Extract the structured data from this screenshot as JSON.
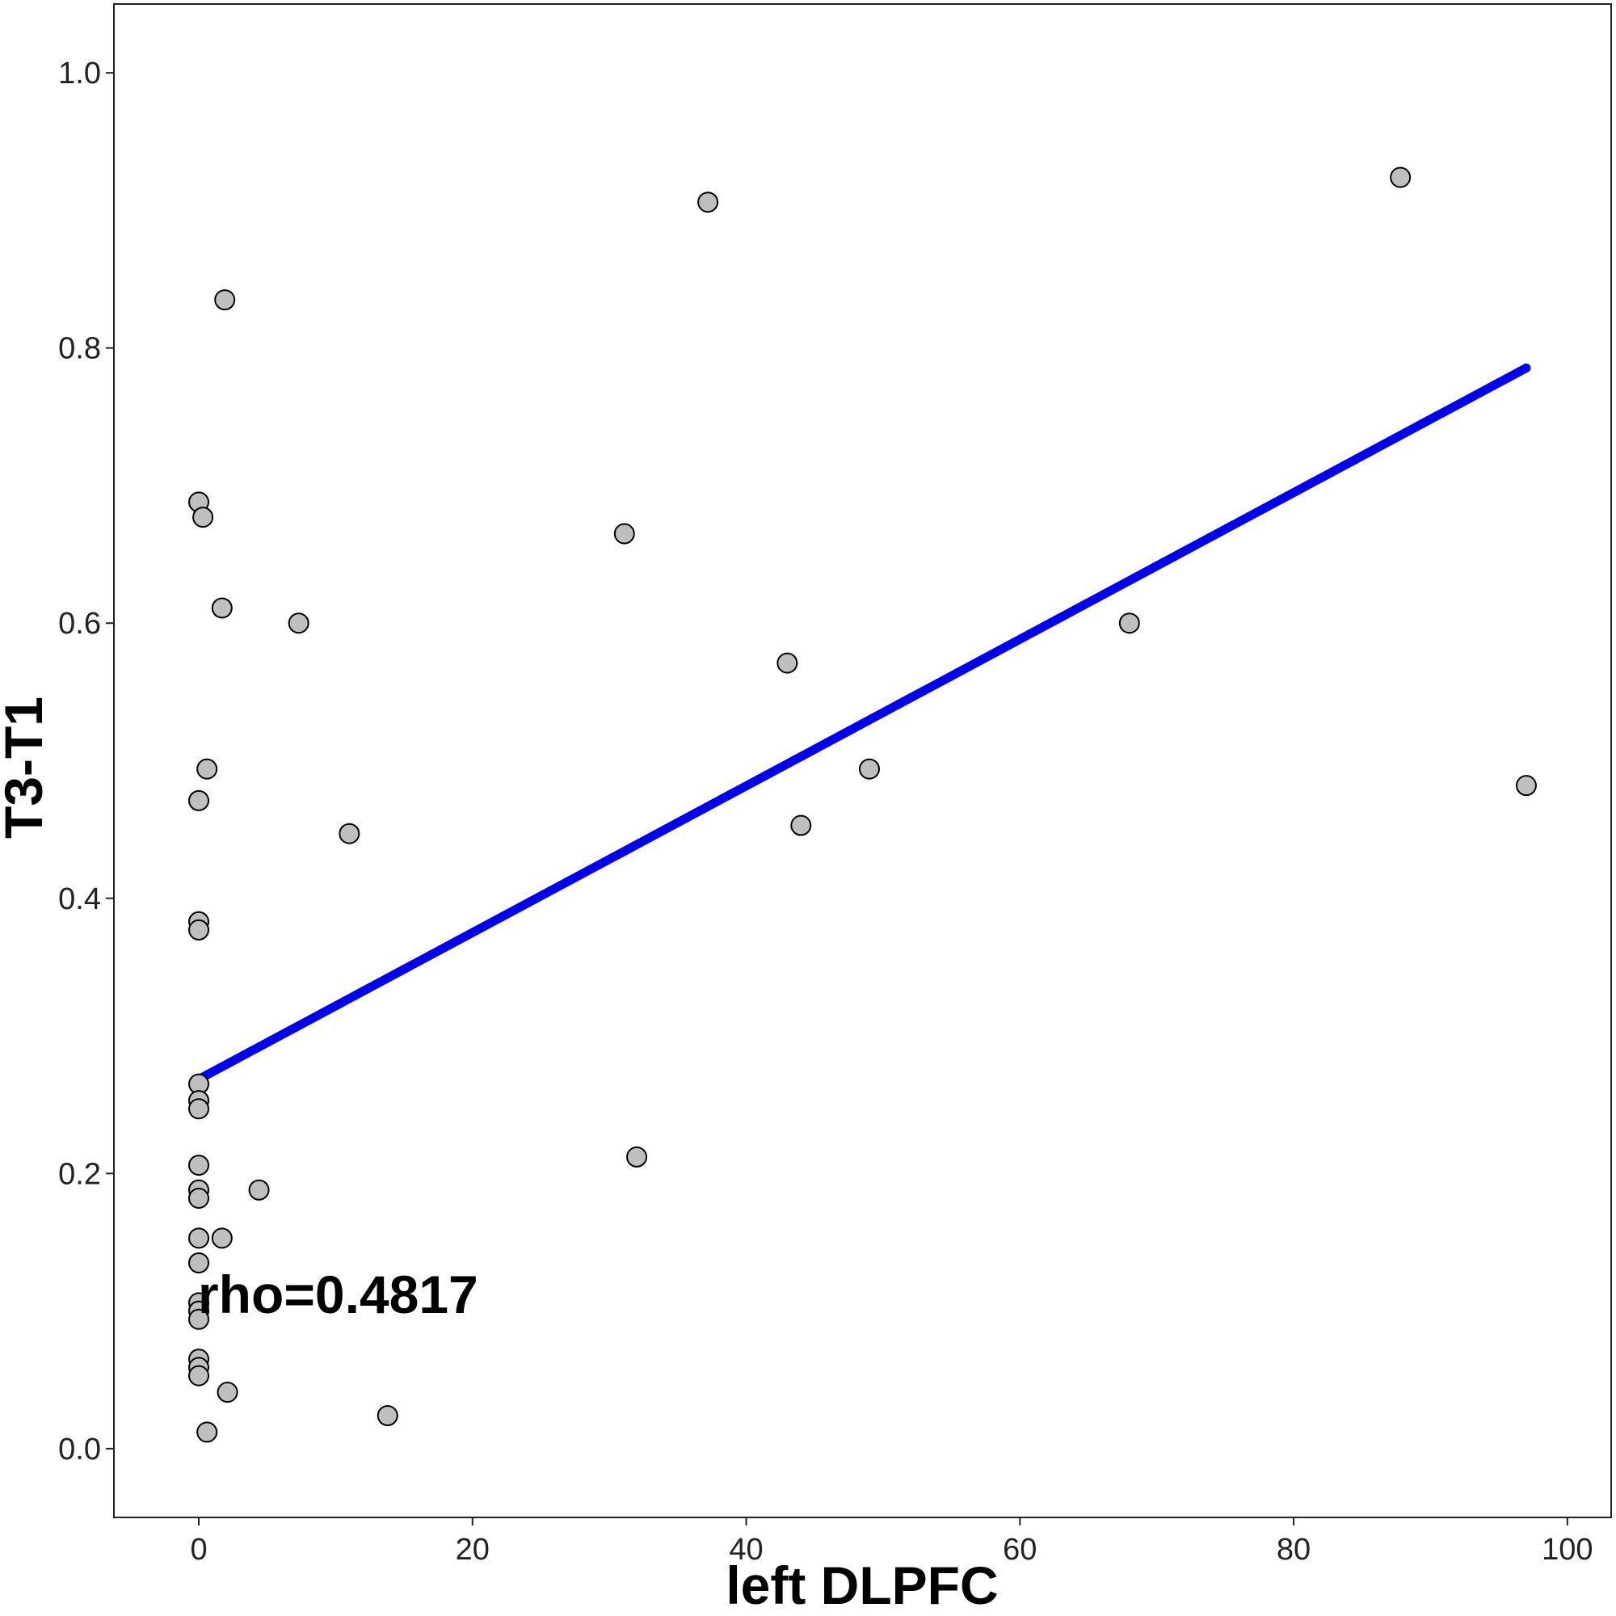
{
  "chart_data": {
    "type": "scatter",
    "xlabel": "left DLPFC",
    "ylabel": "T3-T1",
    "annotation": "rho=0.4817",
    "xlim": [
      -6.2,
      103.2
    ],
    "ylim": [
      -0.05,
      1.05
    ],
    "x_ticks": [
      0,
      20,
      40,
      60,
      80,
      100
    ],
    "x_tick_labels": [
      "0",
      "20",
      "40",
      "60",
      "80",
      "100"
    ],
    "y_ticks": [
      0.0,
      0.2,
      0.4,
      0.6,
      0.8,
      1.0
    ],
    "y_tick_labels": [
      "0.0",
      "0.2",
      "0.4",
      "0.6",
      "0.8",
      "1.0"
    ],
    "grid": false,
    "colors": {
      "point_fill": "#bfbfbf",
      "point_stroke": "#000000",
      "fit_line": "#0000ee"
    },
    "points": [
      {
        "x": 0.0,
        "y": 0.688
      },
      {
        "x": 0.3,
        "y": 0.677
      },
      {
        "x": 1.9,
        "y": 0.835
      },
      {
        "x": 1.7,
        "y": 0.611
      },
      {
        "x": 0.6,
        "y": 0.494
      },
      {
        "x": 0.0,
        "y": 0.471
      },
      {
        "x": 0.0,
        "y": 0.383
      },
      {
        "x": 0.0,
        "y": 0.377
      },
      {
        "x": 0.0,
        "y": 0.265
      },
      {
        "x": 0.0,
        "y": 0.253
      },
      {
        "x": 0.0,
        "y": 0.247
      },
      {
        "x": 0.0,
        "y": 0.206
      },
      {
        "x": 0.0,
        "y": 0.188
      },
      {
        "x": 0.0,
        "y": 0.182
      },
      {
        "x": 0.0,
        "y": 0.153
      },
      {
        "x": 0.0,
        "y": 0.135
      },
      {
        "x": 0.0,
        "y": 0.106
      },
      {
        "x": 0.0,
        "y": 0.1
      },
      {
        "x": 0.0,
        "y": 0.094
      },
      {
        "x": 0.0,
        "y": 0.065
      },
      {
        "x": 0.0,
        "y": 0.059
      },
      {
        "x": 0.0,
        "y": 0.053
      },
      {
        "x": 0.6,
        "y": 0.012
      },
      {
        "x": 2.1,
        "y": 0.041
      },
      {
        "x": 1.7,
        "y": 0.153
      },
      {
        "x": 4.4,
        "y": 0.188
      },
      {
        "x": 7.3,
        "y": 0.6
      },
      {
        "x": 11.0,
        "y": 0.447
      },
      {
        "x": 13.8,
        "y": 0.024
      },
      {
        "x": 31.1,
        "y": 0.665
      },
      {
        "x": 32.0,
        "y": 0.212
      },
      {
        "x": 37.2,
        "y": 0.906
      },
      {
        "x": 43.0,
        "y": 0.571
      },
      {
        "x": 44.0,
        "y": 0.453
      },
      {
        "x": 49.0,
        "y": 0.494
      },
      {
        "x": 68.0,
        "y": 0.6
      },
      {
        "x": 87.8,
        "y": 0.924
      },
      {
        "x": 97.0,
        "y": 0.482
      }
    ],
    "fit_line": {
      "x": [
        0,
        97
      ],
      "y": [
        0.2685,
        0.7855
      ]
    }
  }
}
